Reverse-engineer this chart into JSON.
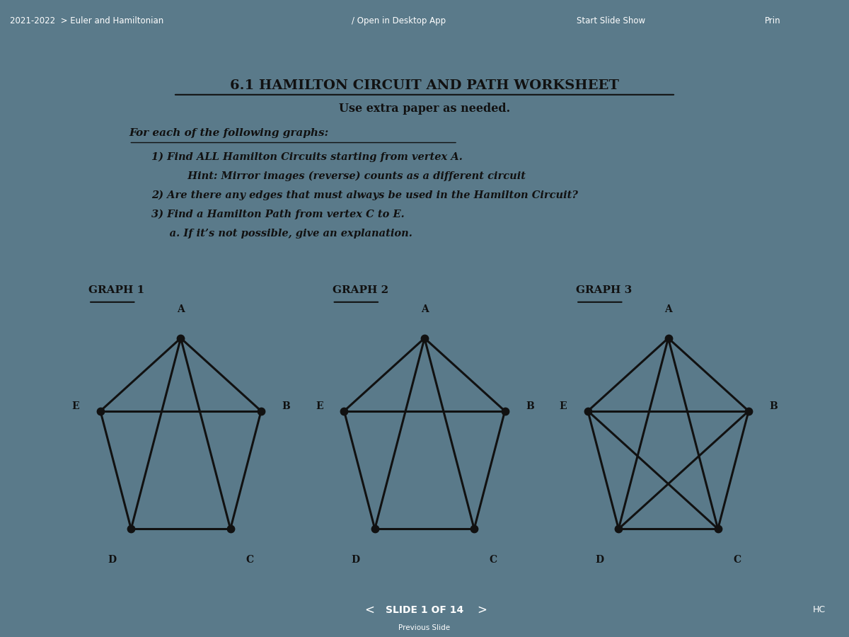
{
  "title": "6.1 HAMILTON CIRCUIT AND PATH WORKSHEET",
  "subtitle": "Use extra paper as needed.",
  "instruction_header": "For each of the following graphs:",
  "instructions": [
    "1) Find ALL Hamilton Circuits starting from vertex A.",
    "          Hint: Mirror images (reverse) counts as a different circuit",
    "2) Are there any edges that must always be used in the Hamilton Circuit?",
    "3) Find a Hamilton Path from vertex C to E.",
    "     a. If it’s not possible, give an explanation."
  ],
  "graph_titles": [
    "GRAPH 1",
    "GRAPH 2",
    "GRAPH 3"
  ],
  "graph1_edges": [
    [
      "A",
      "E"
    ],
    [
      "A",
      "B"
    ],
    [
      "A",
      "D"
    ],
    [
      "A",
      "C"
    ],
    [
      "E",
      "B"
    ],
    [
      "E",
      "D"
    ],
    [
      "B",
      "C"
    ],
    [
      "D",
      "C"
    ]
  ],
  "graph2_edges": [
    [
      "A",
      "E"
    ],
    [
      "A",
      "B"
    ],
    [
      "A",
      "D"
    ],
    [
      "A",
      "C"
    ],
    [
      "E",
      "B"
    ],
    [
      "E",
      "D"
    ],
    [
      "B",
      "C"
    ],
    [
      "D",
      "C"
    ]
  ],
  "graph3_edges": [
    [
      "A",
      "E"
    ],
    [
      "A",
      "B"
    ],
    [
      "A",
      "D"
    ],
    [
      "A",
      "C"
    ],
    [
      "E",
      "B"
    ],
    [
      "E",
      "D"
    ],
    [
      "E",
      "C"
    ],
    [
      "B",
      "C"
    ],
    [
      "B",
      "D"
    ],
    [
      "D",
      "C"
    ]
  ],
  "bg_color": "#5a7a8a",
  "paper_color": "#e8dfc0",
  "text_color": "#111111",
  "edge_color": "#111111",
  "vertex_color": "#111111",
  "header_bar_color": "#2d4a5a",
  "bottom_bar_color": "#2d4a5a",
  "header_text_left": "2021-2022  > Euler and Hamiltonian",
  "header_text_mid": "/ Open in Desktop App",
  "header_text_right1": "Start Slide Show",
  "header_text_right2": "Prin",
  "slide_text": "SLIDE 1 OF 14",
  "footer_note": "HC",
  "prev_slide_text": "Previous Slide"
}
